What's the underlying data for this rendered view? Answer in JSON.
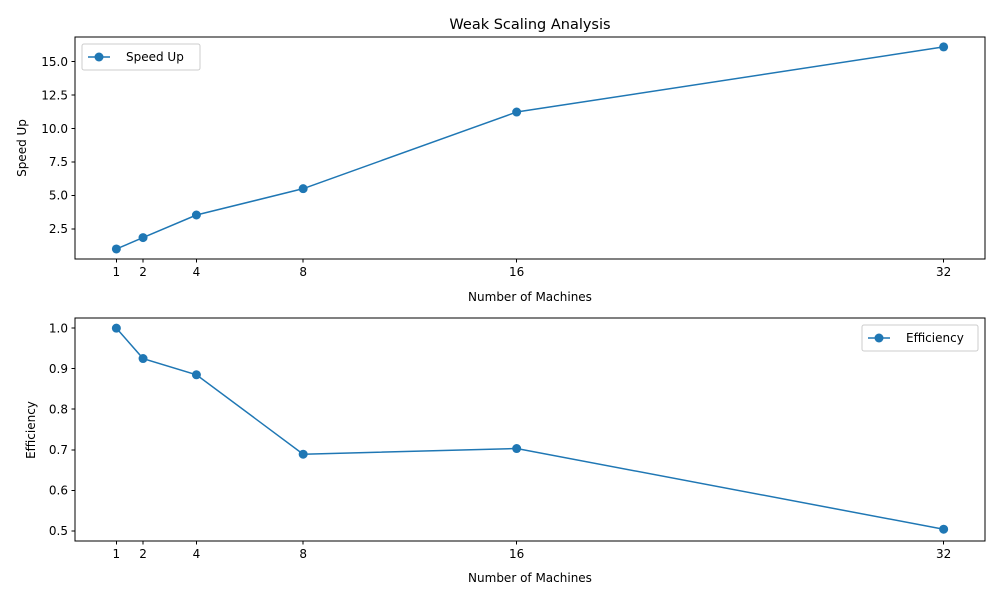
{
  "chart_data": [
    {
      "type": "line",
      "title": "Weak Scaling Analysis",
      "xlabel": "Number of Machines",
      "ylabel": "Speed Up",
      "x": [
        1,
        2,
        4,
        8,
        16,
        32
      ],
      "xticks": [
        1,
        2,
        4,
        8,
        16,
        32
      ],
      "yticks": [
        2.5,
        5.0,
        7.5,
        10.0,
        12.5,
        15.0
      ],
      "ytick_labels": [
        "2.5",
        "5.0",
        "7.5",
        "10.0",
        "12.5",
        "15.0"
      ],
      "xlim": [
        -0.55,
        33.55
      ],
      "ylim": [
        0.25,
        16.85
      ],
      "grid": false,
      "legend": "upper-left",
      "color": "#1f77b4",
      "series": [
        {
          "name": "Speed Up",
          "values": [
            1.0,
            1.85,
            3.54,
            5.51,
            11.24,
            16.11
          ]
        }
      ]
    },
    {
      "type": "line",
      "title": "",
      "xlabel": "Number of Machines",
      "ylabel": "Efficiency",
      "x": [
        1,
        2,
        4,
        8,
        16,
        32
      ],
      "xticks": [
        1,
        2,
        4,
        8,
        16,
        32
      ],
      "yticks": [
        0.5,
        0.6,
        0.7,
        0.8,
        0.9,
        1.0
      ],
      "ytick_labels": [
        "0.5",
        "0.6",
        "0.7",
        "0.8",
        "0.9",
        "1.0"
      ],
      "xlim": [
        -0.55,
        33.55
      ],
      "ylim": [
        0.475,
        1.025
      ],
      "grid": false,
      "legend": "upper-right",
      "color": "#1f77b4",
      "series": [
        {
          "name": "Efficiency",
          "values": [
            1.0,
            0.925,
            0.885,
            0.689,
            0.703,
            0.504
          ]
        }
      ]
    }
  ]
}
